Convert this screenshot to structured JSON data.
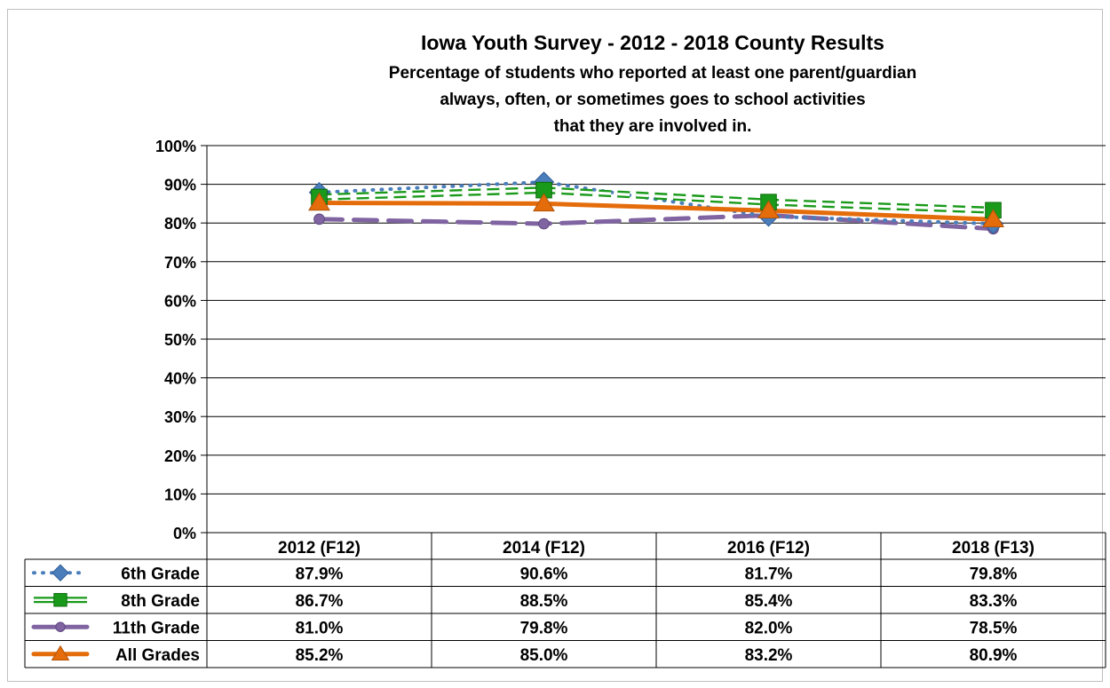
{
  "chart_data": {
    "type": "line",
    "title": "Iowa Youth Survey - 2012 - 2018 County Results",
    "subtitle_lines": [
      "Percentage of students who reported at least one parent/guardian",
      "always, often, or sometimes goes to school activities",
      "that they are involved  in."
    ],
    "categories": [
      "2012 (F12)",
      "2014 (F12)",
      "2016 (F12)",
      "2018 (F13)"
    ],
    "yticks": [
      "0%",
      "10%",
      "20%",
      "30%",
      "40%",
      "50%",
      "60%",
      "70%",
      "80%",
      "90%",
      "100%"
    ],
    "ylim": [
      0,
      100
    ],
    "grid": true,
    "legend": "data-table-below",
    "series": [
      {
        "name": "6th Grade",
        "values": [
          87.9,
          90.6,
          81.7,
          79.8
        ],
        "labels": [
          "87.9%",
          "90.6%",
          "81.7%",
          "79.8%"
        ],
        "color": "#4a7ebb",
        "marker": "diamond",
        "dash": "dotted"
      },
      {
        "name": "8th Grade",
        "values": [
          86.7,
          88.5,
          85.4,
          83.3
        ],
        "labels": [
          "86.7%",
          "88.5%",
          "85.4%",
          "83.3%"
        ],
        "color": "#1a9a1a",
        "marker": "square",
        "dash": "double-dashed"
      },
      {
        "name": "11th Grade",
        "values": [
          81.0,
          79.8,
          82.0,
          78.5
        ],
        "labels": [
          "81.0%",
          "79.8%",
          "82.0%",
          "78.5%"
        ],
        "color": "#8064a2",
        "marker": "circle",
        "dash": "long-dash"
      },
      {
        "name": "All Grades",
        "values": [
          85.2,
          85.0,
          83.2,
          80.9
        ],
        "labels": [
          "85.2%",
          "85.0%",
          "83.2%",
          "80.9%"
        ],
        "color": "#e46c0a",
        "marker": "triangle",
        "dash": "solid"
      }
    ]
  }
}
